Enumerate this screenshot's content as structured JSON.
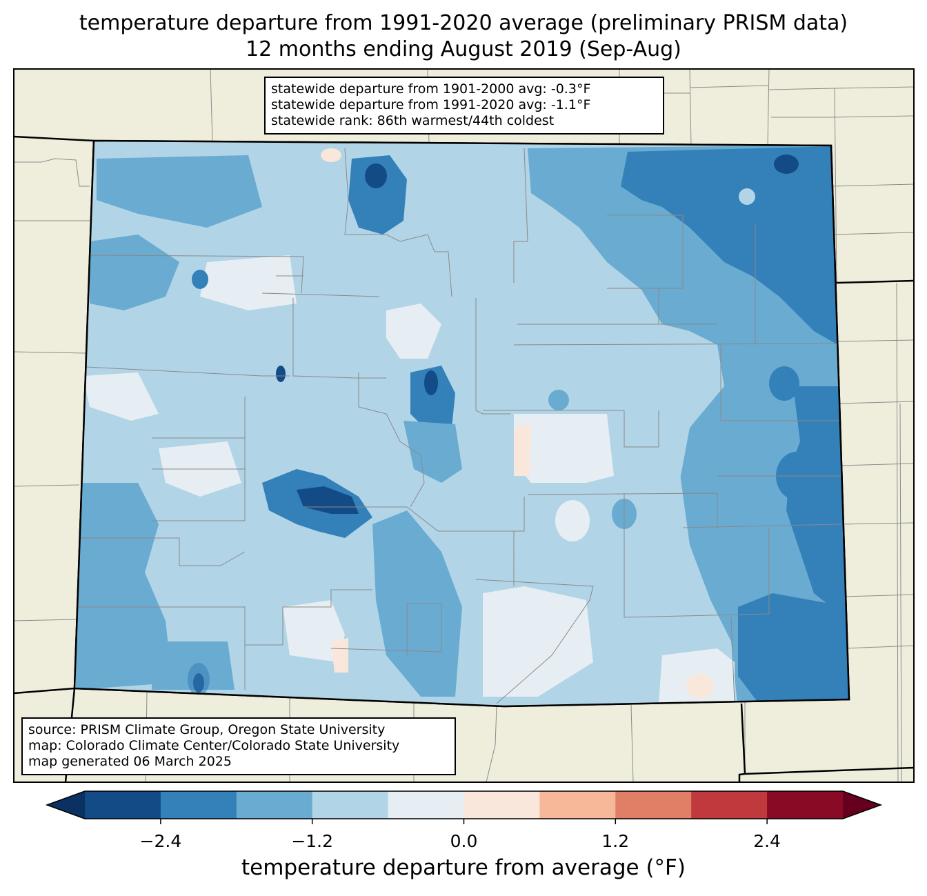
{
  "title": {
    "line1": "temperature departure from 1991-2020 average (preliminary PRISM data)",
    "line2": "12 months ending August 2019 (Sep-Aug)"
  },
  "stats": {
    "line1": "statewide departure from 1901-2000 avg: -0.3°F",
    "line2": "statewide departure from 1991-2020 avg: -1.1°F",
    "line3": "statewide rank: 86th warmest/44th coldest"
  },
  "source": {
    "line1": "source: PRISM Climate Group, Oregon State University",
    "line2": "map: Colorado Climate Center/Colorado State University",
    "line3": "map generated 06 March 2025"
  },
  "colorbar": {
    "label": "temperature departure from average (°F)",
    "min": -3.0,
    "max": 3.0,
    "step": 0.6,
    "ticks": [
      {
        "value": -2.4,
        "label": "−2.4"
      },
      {
        "value": -1.2,
        "label": "−1.2"
      },
      {
        "value": 0.0,
        "label": "0.0"
      },
      {
        "value": 1.2,
        "label": "1.2"
      },
      {
        "value": 2.4,
        "label": "2.4"
      }
    ],
    "under_color": "#0b3162",
    "over_color": "#67001f",
    "colors": [
      "#134b87",
      "#3480b9",
      "#69abd1",
      "#b1d4e7",
      "#e6eef3",
      "#fae7dc",
      "#f7b799",
      "#e07e66",
      "#c0393c",
      "#880a24"
    ]
  },
  "map": {
    "land_color": "#efeedd",
    "state": "Colorado"
  }
}
